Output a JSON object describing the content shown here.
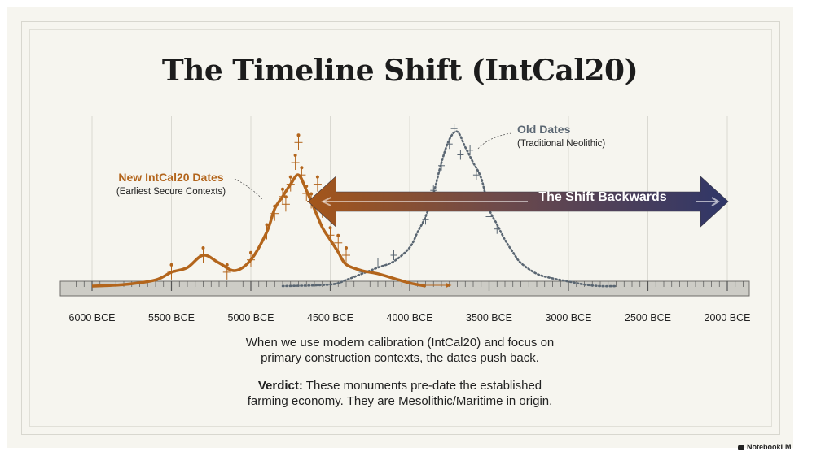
{
  "title": "The Timeline Shift (IntCal20)",
  "chart_data": {
    "type": "area",
    "title": "The Timeline Shift (IntCal20)",
    "x_axis": {
      "ticks": [
        "6000 BCE",
        "5500 BCE",
        "5000 BCE",
        "4500 BCE",
        "4000 BCE",
        "3500 BCE",
        "3000 BCE",
        "2500 BCE",
        "2000 BCE"
      ],
      "range": [
        6000,
        2000
      ],
      "direction": "decreasing-left-to-right",
      "unit": "BCE"
    },
    "y_axis": {
      "shown": false
    },
    "grid": true,
    "series": [
      {
        "name": "New IntCal20 Dates",
        "note": "(Earliest Secure Contexts)",
        "color": "#b3651c",
        "style": "solid",
        "x": [
          6000,
          5800,
          5600,
          5500,
          5400,
          5300,
          5200,
          5100,
          5000,
          4900,
          4850,
          4800,
          4750,
          4700,
          4650,
          4600,
          4550,
          4500,
          4450,
          4400,
          4300,
          4200,
          4100,
          4000,
          3900
        ],
        "y": [
          0.0,
          0.01,
          0.04,
          0.09,
          0.12,
          0.2,
          0.15,
          0.1,
          0.17,
          0.35,
          0.5,
          0.58,
          0.66,
          0.72,
          0.62,
          0.5,
          0.38,
          0.3,
          0.22,
          0.14,
          0.1,
          0.08,
          0.05,
          0.02,
          0.0
        ],
        "points": [
          [
            5500,
            0.09
          ],
          [
            5300,
            0.2
          ],
          [
            5150,
            0.09
          ],
          [
            5000,
            0.17
          ],
          [
            4900,
            0.35
          ],
          [
            4850,
            0.47
          ],
          [
            4800,
            0.58
          ],
          [
            4780,
            0.53
          ],
          [
            4750,
            0.66
          ],
          [
            4720,
            0.8
          ],
          [
            4700,
            0.93
          ],
          [
            4680,
            0.72
          ],
          [
            4650,
            0.6
          ],
          [
            4620,
            0.55
          ],
          [
            4580,
            0.66
          ],
          [
            4550,
            0.49
          ],
          [
            4500,
            0.33
          ],
          [
            4450,
            0.28
          ],
          [
            4400,
            0.2
          ]
        ]
      },
      {
        "name": "Old Dates",
        "note": "(Traditional Neolithic)",
        "color": "#5a6672",
        "style": "dotted",
        "x": [
          4800,
          4500,
          4400,
          4300,
          4200,
          4100,
          4000,
          3950,
          3900,
          3850,
          3800,
          3750,
          3700,
          3650,
          3600,
          3550,
          3500,
          3450,
          3400,
          3350,
          3300,
          3200,
          3100,
          3000,
          2900,
          2800,
          2700
        ],
        "y": [
          0.0,
          0.01,
          0.04,
          0.08,
          0.12,
          0.16,
          0.25,
          0.35,
          0.45,
          0.6,
          0.8,
          0.95,
          1.0,
          0.9,
          0.8,
          0.7,
          0.5,
          0.4,
          0.3,
          0.22,
          0.15,
          0.08,
          0.05,
          0.03,
          0.01,
          0.0,
          0.0
        ],
        "points": [
          [
            4300,
            0.09
          ],
          [
            4200,
            0.15
          ],
          [
            4100,
            0.2
          ],
          [
            3900,
            0.43
          ],
          [
            3850,
            0.62
          ],
          [
            3800,
            0.78
          ],
          [
            3750,
            0.92
          ],
          [
            3720,
            1.02
          ],
          [
            3680,
            0.85
          ],
          [
            3620,
            0.88
          ],
          [
            3580,
            0.72
          ],
          [
            3500,
            0.45
          ],
          [
            3450,
            0.37
          ]
        ]
      }
    ],
    "annotations": [
      {
        "text": "The Shift Backwards",
        "type": "double-arrow",
        "from": 4460,
        "to": 1840
      }
    ]
  },
  "legend": {
    "new_title": "New IntCal20 Dates",
    "new_sub": "(Earliest Secure Contexts)",
    "old_title": "Old Dates",
    "old_sub": "(Traditional Neolithic)"
  },
  "arrow_label": "The Shift Backwards",
  "caption": {
    "line1": "When we use modern calibration (IntCal20) and focus on",
    "line2": "primary construction contexts, the dates push back.",
    "verdict_label": "Verdict:",
    "verdict_line1": " These monuments pre-date the established",
    "verdict_line2": "farming economy. They are Mesolithic/Maritime in origin."
  },
  "footer": "NotebookLM",
  "colors": {
    "new": "#b3651c",
    "old": "#5a6672",
    "arrow_left": "#a4561a",
    "arrow_right": "#2f3668",
    "background": "#f6f5ef"
  }
}
